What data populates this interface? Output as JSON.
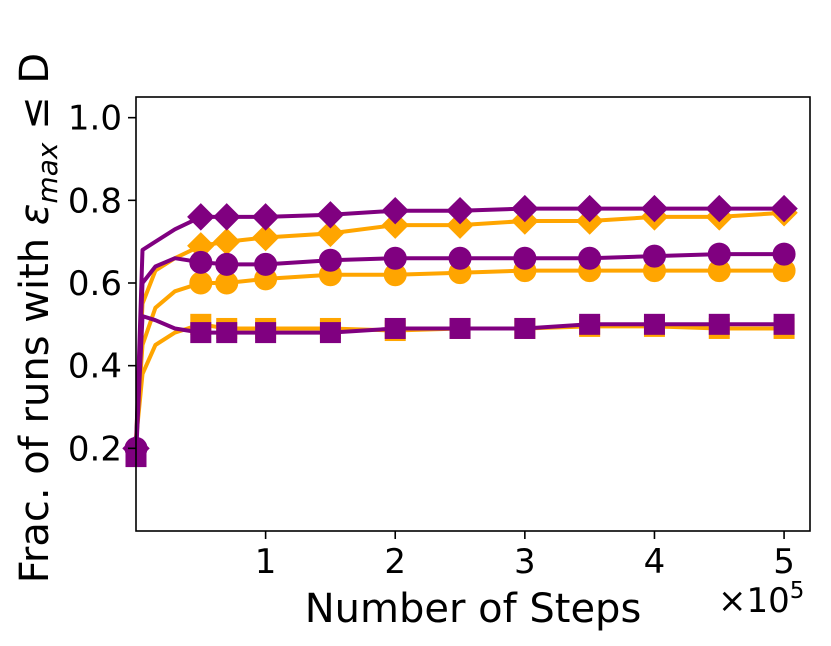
{
  "chart_data": {
    "type": "line",
    "title": "",
    "xlabel": "Number of Steps",
    "ylabel_prefix": "Frac. of runs with ",
    "ylabel_symbol": "ε",
    "ylabel_subscript": "max",
    "ylabel_suffix": " ≤ D",
    "x_multiplier_label": "×10",
    "x_multiplier_exponent": "5",
    "xlim": [
      0,
      5.2
    ],
    "ylim": [
      0.0,
      1.05
    ],
    "x_ticks": [
      1,
      2,
      3,
      4,
      5
    ],
    "x_tick_labels": [
      "1",
      "2",
      "3",
      "4",
      "5"
    ],
    "y_ticks": [
      0.2,
      0.4,
      0.6,
      0.8,
      1.0
    ],
    "y_tick_labels": [
      "0.2",
      "0.4",
      "0.6",
      "0.8",
      "1.0"
    ],
    "grid": false,
    "legend": "none",
    "series": [
      {
        "color": "#FFA500",
        "marker": "diamond",
        "x": [
          0,
          0.05,
          0.15,
          0.3,
          0.5,
          0.7,
          1.0,
          1.5,
          2.0,
          2.5,
          3.0,
          3.5,
          4.0,
          4.5,
          5.0
        ],
        "y": [
          0.22,
          0.55,
          0.63,
          0.66,
          0.69,
          0.7,
          0.71,
          0.72,
          0.74,
          0.74,
          0.75,
          0.75,
          0.76,
          0.76,
          0.77
        ]
      },
      {
        "color": "#FFA500",
        "marker": "circle",
        "x": [
          0,
          0.05,
          0.15,
          0.3,
          0.5,
          0.7,
          1.0,
          1.5,
          2.0,
          2.5,
          3.0,
          3.5,
          4.0,
          4.5,
          5.0
        ],
        "y": [
          0.22,
          0.45,
          0.54,
          0.58,
          0.6,
          0.6,
          0.61,
          0.62,
          0.62,
          0.625,
          0.63,
          0.63,
          0.63,
          0.63,
          0.63
        ]
      },
      {
        "color": "#FFA500",
        "marker": "square",
        "x": [
          0,
          0.05,
          0.15,
          0.3,
          0.5,
          0.7,
          1.0,
          1.5,
          2.0,
          2.5,
          3.0,
          3.5,
          4.0,
          4.5,
          5.0
        ],
        "y": [
          0.22,
          0.38,
          0.45,
          0.48,
          0.5,
          0.49,
          0.49,
          0.49,
          0.485,
          0.49,
          0.49,
          0.495,
          0.495,
          0.49,
          0.49
        ]
      },
      {
        "color": "#800080",
        "marker": "diamond",
        "x": [
          0,
          0.05,
          0.15,
          0.3,
          0.5,
          0.7,
          1.0,
          1.5,
          2.0,
          2.5,
          3.0,
          3.5,
          4.0,
          4.5,
          5.0
        ],
        "y": [
          0.2,
          0.68,
          0.7,
          0.73,
          0.76,
          0.76,
          0.76,
          0.765,
          0.775,
          0.775,
          0.78,
          0.78,
          0.78,
          0.78,
          0.78
        ]
      },
      {
        "color": "#800080",
        "marker": "circle",
        "x": [
          0,
          0.05,
          0.15,
          0.3,
          0.5,
          0.7,
          1.0,
          1.5,
          2.0,
          2.5,
          3.0,
          3.5,
          4.0,
          4.5,
          5.0
        ],
        "y": [
          0.2,
          0.6,
          0.64,
          0.66,
          0.65,
          0.645,
          0.645,
          0.655,
          0.66,
          0.66,
          0.66,
          0.66,
          0.665,
          0.67,
          0.67
        ]
      },
      {
        "color": "#800080",
        "marker": "square",
        "x": [
          0,
          0.05,
          0.15,
          0.3,
          0.5,
          0.7,
          1.0,
          1.5,
          2.0,
          2.5,
          3.0,
          3.5,
          4.0,
          4.5,
          5.0
        ],
        "y": [
          0.18,
          0.52,
          0.51,
          0.49,
          0.48,
          0.48,
          0.48,
          0.48,
          0.49,
          0.49,
          0.49,
          0.5,
          0.5,
          0.5,
          0.5
        ]
      }
    ]
  }
}
